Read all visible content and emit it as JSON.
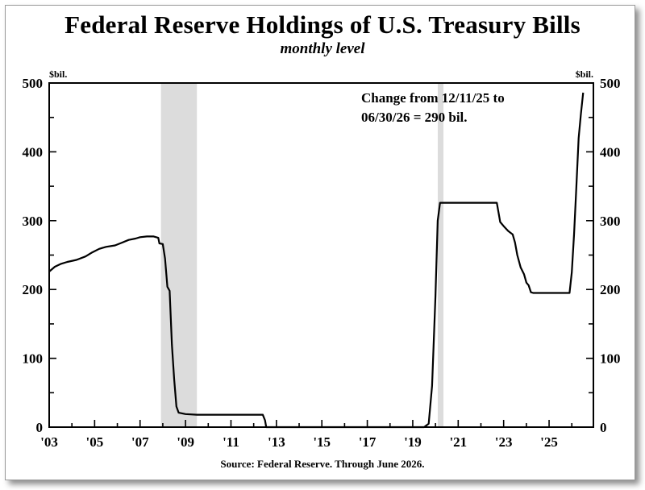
{
  "chart_data": {
    "type": "line",
    "title": "Federal Reserve Holdings of U.S. Treasury Bills",
    "subtitle": "monthly level",
    "unit_left": "$bil.",
    "unit_right": "$bil.",
    "source": "Source: Federal Reserve. Through June 2026.",
    "annotation": [
      "Change from 12/11/25 to",
      "06/30/26 = 290 bil."
    ],
    "xlim": [
      2003.0,
      2026.95
    ],
    "ylim": [
      0,
      500
    ],
    "x_tick_labels": [
      {
        "year": 2003,
        "label": "'03"
      },
      {
        "year": 2005,
        "label": "'05"
      },
      {
        "year": 2007,
        "label": "'07"
      },
      {
        "year": 2009,
        "label": "'09"
      },
      {
        "year": 2011,
        "label": "'11"
      },
      {
        "year": 2013,
        "label": "'13"
      },
      {
        "year": 2015,
        "label": "'15"
      },
      {
        "year": 2017,
        "label": "'17"
      },
      {
        "year": 2019,
        "label": "'19"
      },
      {
        "year": 2021,
        "label": "'21"
      },
      {
        "year": 2023,
        "label": "'23"
      },
      {
        "year": 2025,
        "label": "'25"
      }
    ],
    "y_ticks": [
      0,
      100,
      200,
      300,
      400,
      500
    ],
    "recessions": [
      {
        "start": 2007.92,
        "end": 2009.5
      },
      {
        "start": 2020.1,
        "end": 2020.35
      }
    ],
    "series": [
      {
        "color": "#000000",
        "points": [
          [
            2003.0,
            226
          ],
          [
            2003.25,
            233
          ],
          [
            2003.5,
            237
          ],
          [
            2003.8,
            240
          ],
          [
            2004.2,
            243
          ],
          [
            2004.6,
            248
          ],
          [
            2004.9,
            254
          ],
          [
            2005.2,
            259
          ],
          [
            2005.5,
            262
          ],
          [
            2005.9,
            264
          ],
          [
            2006.2,
            268
          ],
          [
            2006.5,
            272
          ],
          [
            2006.8,
            274
          ],
          [
            2007.0,
            276
          ],
          [
            2007.3,
            277
          ],
          [
            2007.6,
            277
          ],
          [
            2007.8,
            275
          ],
          [
            2007.85,
            267
          ],
          [
            2008.0,
            266
          ],
          [
            2008.1,
            245
          ],
          [
            2008.2,
            204
          ],
          [
            2008.3,
            198
          ],
          [
            2008.4,
            120
          ],
          [
            2008.5,
            70
          ],
          [
            2008.6,
            30
          ],
          [
            2008.7,
            21
          ],
          [
            2008.85,
            20
          ],
          [
            2009.0,
            19
          ],
          [
            2009.5,
            18
          ],
          [
            2010.5,
            18
          ],
          [
            2011.5,
            18
          ],
          [
            2012.4,
            18
          ],
          [
            2012.5,
            10
          ],
          [
            2012.55,
            0
          ],
          [
            2019.5,
            0
          ],
          [
            2019.7,
            5
          ],
          [
            2019.85,
            60
          ],
          [
            2020.0,
            190
          ],
          [
            2020.1,
            300
          ],
          [
            2020.2,
            326
          ],
          [
            2022.7,
            326
          ],
          [
            2022.85,
            298
          ],
          [
            2023.0,
            292
          ],
          [
            2023.2,
            285
          ],
          [
            2023.4,
            280
          ],
          [
            2023.5,
            268
          ],
          [
            2023.6,
            250
          ],
          [
            2023.75,
            232
          ],
          [
            2023.9,
            222
          ],
          [
            2024.0,
            210
          ],
          [
            2024.1,
            206
          ],
          [
            2024.2,
            196
          ],
          [
            2024.3,
            195
          ],
          [
            2025.9,
            195
          ],
          [
            2026.0,
            225
          ],
          [
            2026.1,
            280
          ],
          [
            2026.2,
            350
          ],
          [
            2026.3,
            420
          ],
          [
            2026.4,
            455
          ],
          [
            2026.5,
            486
          ]
        ]
      }
    ]
  }
}
